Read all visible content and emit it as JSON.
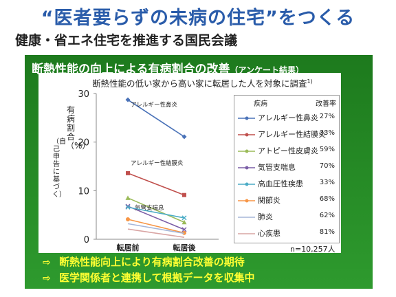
{
  "title": "“医者要らずの未病の住宅”をつくる",
  "subtitle": "健康・省エネ住宅を推進する国民会議",
  "panel": {
    "heading": "断熱性能の向上による有病割合の改善",
    "heading_note": "（アンケート結果）",
    "caption": "断熱性能の低い家から高い家に転居した人を対象に調査",
    "caption_ref": "1)",
    "bullets": [
      "断熱性能向上により有病割合改善の期待",
      "医学関係者と連携して根拠データを収集中"
    ],
    "bullet_arrow": "⇨"
  },
  "legend": {
    "col_disease": "疾病",
    "col_rate": "改善率"
  },
  "n_note": "n=10,257人",
  "chart_data": {
    "type": "line",
    "x": [
      "転居前",
      "転居後"
    ],
    "ylim": [
      0,
      30
    ],
    "yticks": [
      "0",
      "10",
      "20",
      "30"
    ],
    "ylabel": "有病割合（%）",
    "ylabel_sub": "（自己申告に基づく）",
    "series": [
      {
        "name": "アレルギー性鼻炎",
        "values": [
          28.7,
          21.1
        ],
        "rate": "27%",
        "color": "#4a72b8",
        "marker": "diamond",
        "annotation": "アレルギー性鼻炎"
      },
      {
        "name": "アレルギー性結膜炎",
        "values": [
          13.6,
          9.1
        ],
        "rate": "33%",
        "color": "#c0504d",
        "marker": "square",
        "annotation": "アレルギー性結膜炎"
      },
      {
        "name": "アトピー性皮膚炎",
        "values": [
          8.5,
          3.5
        ],
        "rate": "59%",
        "color": "#9bbb59",
        "marker": "triangle"
      },
      {
        "name": "気管支喘息",
        "values": [
          6.8,
          2.0
        ],
        "rate": "70%",
        "color": "#7b5ea7",
        "marker": "x",
        "annotation": "気管支喘息"
      },
      {
        "name": "高血圧性疾患",
        "values": [
          6.6,
          4.4
        ],
        "rate": "33%",
        "color": "#4bacc6",
        "marker": "x"
      },
      {
        "name": "関節炎",
        "values": [
          4.1,
          1.3
        ],
        "rate": "68%",
        "color": "#f79646",
        "marker": "circle"
      },
      {
        "name": "肺炎",
        "values": [
          3.2,
          1.2
        ],
        "rate": "62%",
        "color": "#a5b6d9",
        "marker": "none"
      },
      {
        "name": "心疾患",
        "values": [
          2.1,
          0.4
        ],
        "rate": "81%",
        "color": "#d9a5a4",
        "marker": "none"
      }
    ]
  }
}
